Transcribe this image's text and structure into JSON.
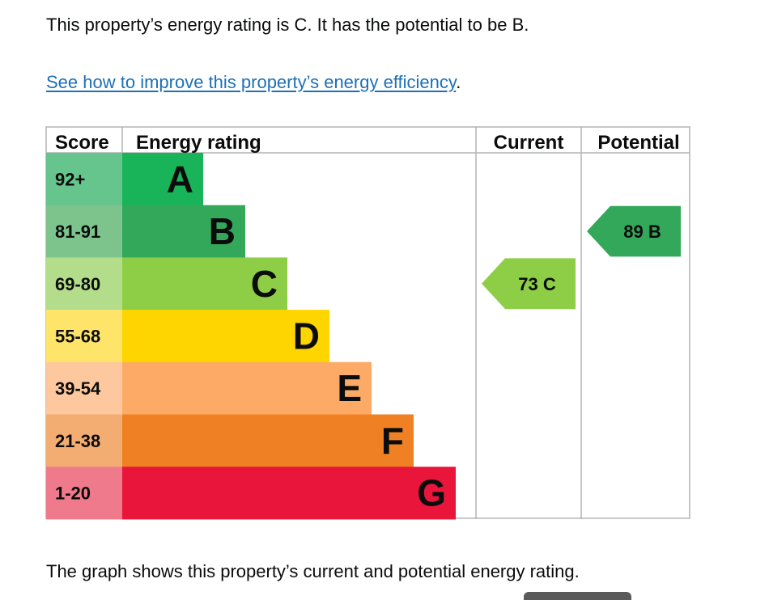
{
  "intro_text": "This property’s energy rating is C. It has the potential to be B.",
  "link": {
    "text": "See how to improve this property’s energy efficiency",
    "suffix": "."
  },
  "footer_text": "The graph shows this property’s current and potential energy rating.",
  "chart_data": {
    "type": "bar",
    "columns": [
      "Score",
      "Energy rating",
      "Current",
      "Potential"
    ],
    "bands": [
      {
        "letter": "A",
        "range": "92+",
        "color": "#19b459",
        "score_bg": "#66c48d"
      },
      {
        "letter": "B",
        "range": "81-91",
        "color": "#33a85a",
        "score_bg": "#7cc38c"
      },
      {
        "letter": "C",
        "range": "69-80",
        "color": "#8dce46",
        "score_bg": "#b3dd8a"
      },
      {
        "letter": "D",
        "range": "55-68",
        "color": "#ffd500",
        "score_bg": "#ffe46a"
      },
      {
        "letter": "E",
        "range": "39-54",
        "color": "#fcaa65",
        "score_bg": "#fdc89d"
      },
      {
        "letter": "F",
        "range": "21-38",
        "color": "#ef8023",
        "score_bg": "#f3ad73"
      },
      {
        "letter": "G",
        "range": "1-20",
        "color": "#e9153b",
        "score_bg": "#ee7a8c"
      }
    ],
    "current": {
      "score": 73,
      "band": "C",
      "label": "73 C"
    },
    "potential": {
      "score": 89,
      "band": "B",
      "label": "89 B"
    }
  }
}
